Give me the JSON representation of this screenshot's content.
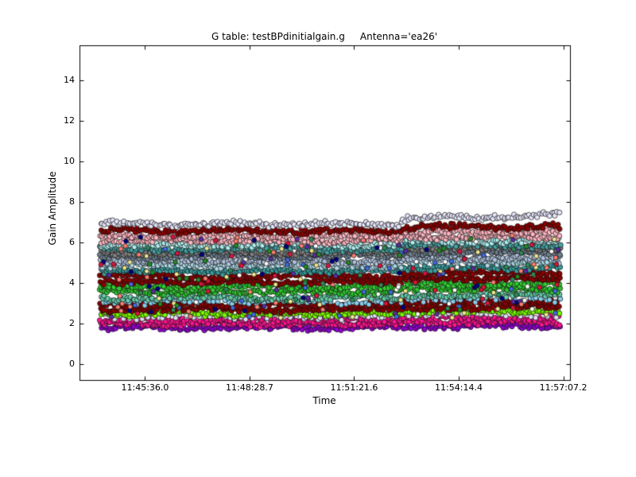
{
  "chart_data": {
    "type": "scatter",
    "title": "G table: testBPdinitialgain.g     Antenna='ea26'",
    "xlabel": "Time",
    "ylabel": "Gain Amplitude",
    "grid": false,
    "legend": null,
    "background_color": "#ffffff",
    "frame_color": "#000000",
    "x_ticks": [
      {
        "label": "11:45:36.0",
        "value": 42336.0
      },
      {
        "label": "11:48:28.7",
        "value": 42508.8
      },
      {
        "label": "11:51:21.6",
        "value": 42681.6
      },
      {
        "label": "11:54:14.4",
        "value": 42854.4
      },
      {
        "label": "11:57:07.2",
        "value": 43027.2
      }
    ],
    "x_range": [
      42228.3,
      43039.0
    ],
    "y_ticks": [
      0,
      2,
      4,
      6,
      8,
      10,
      12,
      14
    ],
    "y_range": [
      -0.8,
      15.7
    ],
    "data_t_start": 42261,
    "data_t_end": 43023,
    "step_change_t": 42760,
    "marker": {
      "shape": "circle",
      "radius": 3.1,
      "edge_color": "#111111",
      "edge_width": 0.7
    },
    "points_per_band": 230,
    "noise_spread": 0.16,
    "wave_amplitude": 0.055,
    "bands": [
      {
        "color": "#e6e6fa",
        "level": 6.9,
        "jump": 0.28,
        "drift": 0.18
      },
      {
        "color": "#8b0000",
        "level": 6.58,
        "jump": 0.2
      },
      {
        "color": "#ffb6c1",
        "level": 6.33,
        "jump": 0.2
      },
      {
        "color": "#ffb6c1",
        "level": 6.1,
        "jump": 0.18
      },
      {
        "color": "#afeeee",
        "level": 5.88,
        "jump": 0.18
      },
      {
        "color": "#48a4a4",
        "level": 5.7,
        "jump": 0.18
      },
      {
        "color": "#808080",
        "level": 5.52,
        "jump": 0.18
      },
      {
        "color": "#708090",
        "level": 5.34,
        "jump": 0.16
      },
      {
        "color": "#b0c4de",
        "level": 5.08,
        "jump": 0.16
      },
      {
        "color": "#add8e6",
        "level": 4.88,
        "jump": 0.16
      },
      {
        "color": "#3a9c9c",
        "level": 4.6,
        "jump": 0.15
      },
      {
        "color": "#8b0000",
        "level": 4.33,
        "jump": 0.14
      },
      {
        "color": "#8b0000",
        "level": 4.07,
        "jump": 0.14
      },
      {
        "color": "#32cd32",
        "level": 3.82,
        "jump": 0.13
      },
      {
        "color": "#2fc32f",
        "level": 3.57,
        "jump": 0.13
      },
      {
        "color": "#66cdaa",
        "level": 3.28,
        "jump": 0.12
      },
      {
        "color": "#87ceeb",
        "level": 3.07,
        "jump": 0.12,
        "n": 110
      },
      {
        "color": "#8b0000",
        "level": 2.93,
        "jump": 0.11
      },
      {
        "color": "#8b0000",
        "level": 2.7,
        "jump": 0.1
      },
      {
        "color": "#7cfc00",
        "level": 2.5,
        "jump": 0.1
      },
      {
        "color": "#dcdcf0",
        "level": 2.34,
        "jump": 0.09,
        "n": 90
      },
      {
        "color": "#ff1493",
        "level": 2.17,
        "jump": 0.09
      },
      {
        "color": "#ff1493",
        "level": 2.0,
        "jump": 0.08
      },
      {
        "color": "#9400d3",
        "level": 1.8,
        "jump": 0.07
      }
    ],
    "speckles": {
      "count": 260,
      "y_min": 2.28,
      "y_max": 6.35,
      "radius": 2.8,
      "colors": [
        "#4169e1",
        "#f0e68c",
        "#dc143c",
        "#228b22",
        "#000080",
        "#ffffff",
        "#fa8072",
        "#2e8b57",
        "#5a2ca0"
      ]
    }
  }
}
